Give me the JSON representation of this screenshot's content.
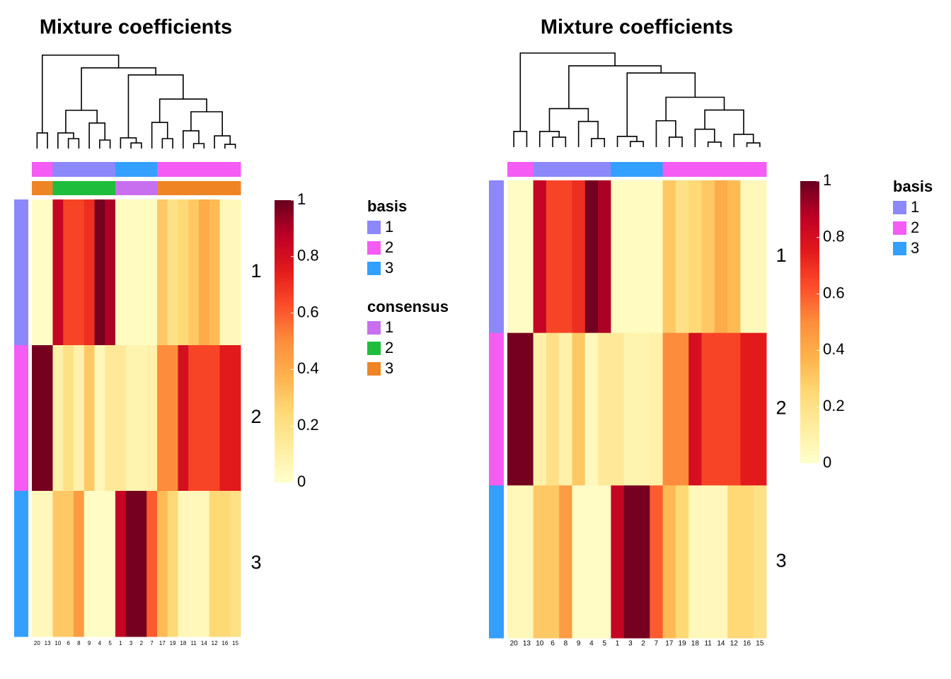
{
  "chart_data": [
    {
      "type": "heatmap",
      "title": "Mixture coefficients",
      "columns": [
        "20",
        "13",
        "10",
        "6",
        "8",
        "9",
        "4",
        "5",
        "1",
        "3",
        "2",
        "7",
        "17",
        "19",
        "18",
        "11",
        "14",
        "12",
        "16",
        "15"
      ],
      "rows": [
        "1",
        "2",
        "3"
      ],
      "values": [
        [
          0.02,
          0.02,
          0.85,
          0.65,
          0.65,
          0.7,
          0.98,
          0.9,
          0.03,
          0.03,
          0.03,
          0.03,
          0.3,
          0.2,
          0.25,
          0.3,
          0.4,
          0.35,
          0.05,
          0.05
        ],
        [
          0.98,
          0.98,
          0.1,
          0.2,
          0.1,
          0.3,
          0.05,
          0.15,
          0.15,
          0.08,
          0.08,
          0.1,
          0.5,
          0.5,
          0.8,
          0.65,
          0.65,
          0.65,
          0.75,
          0.75
        ],
        [
          0.05,
          0.05,
          0.3,
          0.3,
          0.45,
          0.02,
          0.02,
          0.02,
          0.85,
          0.98,
          0.98,
          0.6,
          0.35,
          0.25,
          0.05,
          0.05,
          0.05,
          0.25,
          0.25,
          0.2
        ]
      ],
      "zlim": [
        0,
        1
      ],
      "zticks": [
        0,
        0.2,
        0.4,
        0.6,
        0.8,
        1
      ],
      "colorscale": [
        "#ffffcc",
        "#ffeda0",
        "#fed976",
        "#feb24c",
        "#fd8d3c",
        "#fc4e2a",
        "#e31a1c",
        "#bd0026",
        "#67001f"
      ],
      "column_annotations": [
        {
          "name": "basis",
          "levels": [
            "1",
            "2",
            "3"
          ],
          "colors": [
            "#8c88fa",
            "#f45cf4",
            "#339ffe"
          ],
          "values": [
            "2",
            "2",
            "1",
            "1",
            "1",
            "1",
            "1",
            "1",
            "3",
            "3",
            "3",
            "3",
            "2",
            "2",
            "2",
            "2",
            "2",
            "2",
            "2",
            "2"
          ]
        },
        {
          "name": "consensus",
          "levels": [
            "1",
            "2",
            "3"
          ],
          "colors": [
            "#c86ff0",
            "#1fbd3c",
            "#ef8425"
          ],
          "values": [
            "3",
            "3",
            "2",
            "2",
            "2",
            "2",
            "2",
            "2",
            "1",
            "1",
            "1",
            "1",
            "3",
            "3",
            "3",
            "3",
            "3",
            "3",
            "3",
            "3"
          ]
        }
      ],
      "row_annotation": {
        "name": "basis",
        "values": [
          "1",
          "2",
          "3"
        ]
      }
    },
    {
      "type": "heatmap",
      "title": "Mixture coefficients",
      "columns": [
        "20",
        "13",
        "10",
        "6",
        "8",
        "9",
        "4",
        "5",
        "1",
        "3",
        "2",
        "7",
        "17",
        "19",
        "18",
        "11",
        "14",
        "12",
        "16",
        "15"
      ],
      "rows": [
        "1",
        "2",
        "3"
      ],
      "values": [
        [
          0.02,
          0.02,
          0.85,
          0.65,
          0.65,
          0.7,
          0.98,
          0.9,
          0.03,
          0.03,
          0.03,
          0.03,
          0.3,
          0.2,
          0.25,
          0.3,
          0.4,
          0.35,
          0.05,
          0.05
        ],
        [
          0.98,
          0.98,
          0.1,
          0.2,
          0.1,
          0.3,
          0.05,
          0.15,
          0.15,
          0.08,
          0.08,
          0.1,
          0.5,
          0.5,
          0.8,
          0.65,
          0.65,
          0.65,
          0.75,
          0.75
        ],
        [
          0.05,
          0.05,
          0.3,
          0.3,
          0.45,
          0.02,
          0.02,
          0.02,
          0.85,
          0.98,
          0.98,
          0.6,
          0.35,
          0.25,
          0.05,
          0.05,
          0.05,
          0.25,
          0.25,
          0.2
        ]
      ],
      "zlim": [
        0,
        1
      ],
      "zticks": [
        0,
        0.2,
        0.4,
        0.6,
        0.8,
        1
      ],
      "colorscale": [
        "#ffffcc",
        "#ffeda0",
        "#fed976",
        "#feb24c",
        "#fd8d3c",
        "#fc4e2a",
        "#e31a1c",
        "#bd0026",
        "#67001f"
      ],
      "column_annotations": [
        {
          "name": "basis",
          "levels": [
            "1",
            "2",
            "3"
          ],
          "colors": [
            "#8c88fa",
            "#f45cf4",
            "#339ffe"
          ],
          "values": [
            "2",
            "2",
            "1",
            "1",
            "1",
            "1",
            "1",
            "1",
            "3",
            "3",
            "3",
            "3",
            "2",
            "2",
            "2",
            "2",
            "2",
            "2",
            "2",
            "2"
          ]
        }
      ],
      "row_annotation": {
        "name": "basis",
        "values": [
          "1",
          "2",
          "3"
        ]
      }
    }
  ]
}
